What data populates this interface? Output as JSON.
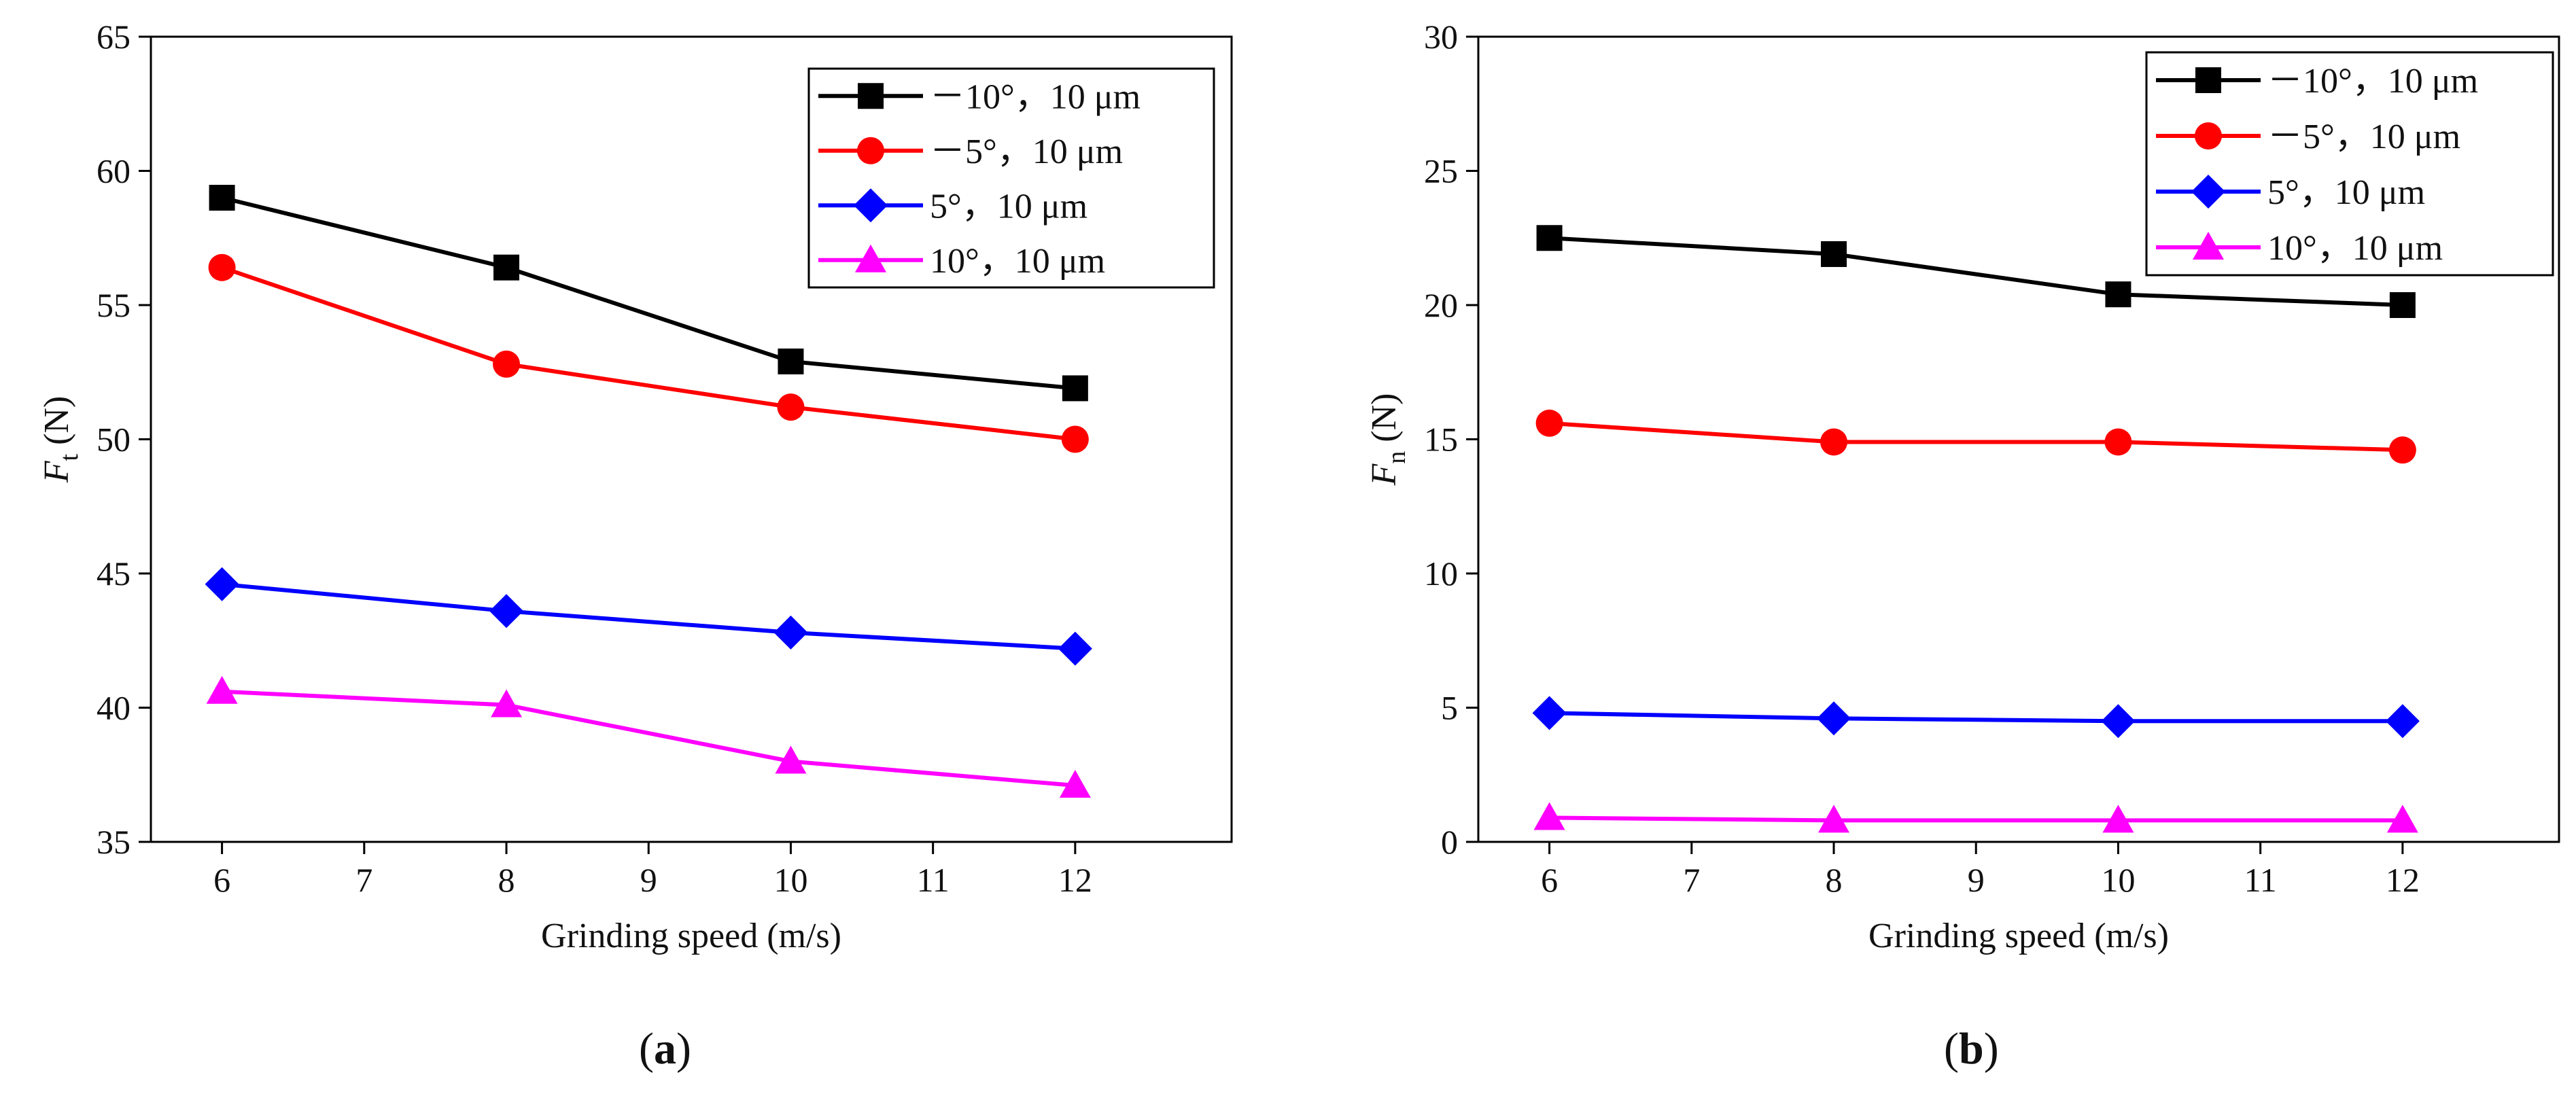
{
  "figure": {
    "panel_labels": [
      {
        "open": "(",
        "letter": "a",
        "close": ")"
      },
      {
        "open": "(",
        "letter": "b",
        "close": ")"
      }
    ]
  },
  "chart_data": [
    {
      "type": "line",
      "title": "",
      "xlabel": "Grinding speed (m/s)",
      "ylabel": {
        "symbol": "F",
        "subscript": "t",
        "unit": " (N)"
      },
      "xlim": [
        5.5,
        13.1
      ],
      "ylim": [
        35,
        65
      ],
      "xticks": [
        6,
        7,
        8,
        9,
        10,
        11,
        12
      ],
      "yticks": [
        35,
        40,
        45,
        50,
        55,
        60,
        65
      ],
      "x": [
        6,
        8,
        10,
        12
      ],
      "legend_position": "top-right",
      "series": [
        {
          "name": "－10°，10 μm",
          "color": "#000000",
          "marker": "square",
          "values": [
            59.0,
            56.4,
            52.9,
            51.9
          ]
        },
        {
          "name": "－5°，10 μm",
          "color": "#ff0000",
          "marker": "circle",
          "values": [
            56.4,
            52.8,
            51.2,
            50.0
          ]
        },
        {
          "name": " 5°，10 μm",
          "color": "#0000ff",
          "marker": "diamond",
          "values": [
            44.6,
            43.6,
            42.8,
            42.2
          ]
        },
        {
          "name": "10°，10 μm",
          "color": "#ff00ff",
          "marker": "triangle",
          "values": [
            40.6,
            40.1,
            38.0,
            37.1
          ]
        }
      ]
    },
    {
      "type": "line",
      "title": "",
      "xlabel": "Grinding speed (m/s)",
      "ylabel": {
        "symbol": "F",
        "subscript": "n",
        "unit": " (N)"
      },
      "xlim": [
        5.5,
        13.1
      ],
      "ylim": [
        0,
        30
      ],
      "xticks": [
        6,
        7,
        8,
        9,
        10,
        11,
        12
      ],
      "yticks": [
        0,
        5,
        10,
        15,
        20,
        25,
        30
      ],
      "x": [
        6,
        8,
        10,
        12
      ],
      "legend_position": "top-right",
      "series": [
        {
          "name": "－10°，10 μm",
          "color": "#000000",
          "marker": "square",
          "values": [
            22.5,
            21.9,
            20.4,
            20.0
          ]
        },
        {
          "name": "－5°，10 μm",
          "color": "#ff0000",
          "marker": "circle",
          "values": [
            15.6,
            14.9,
            14.9,
            14.6
          ]
        },
        {
          "name": " 5°，10 μm",
          "color": "#0000ff",
          "marker": "diamond",
          "values": [
            4.8,
            4.6,
            4.5,
            4.5
          ]
        },
        {
          "name": "10°，10 μm",
          "color": "#ff00ff",
          "marker": "triangle",
          "values": [
            0.9,
            0.8,
            0.8,
            0.8
          ]
        }
      ]
    }
  ]
}
